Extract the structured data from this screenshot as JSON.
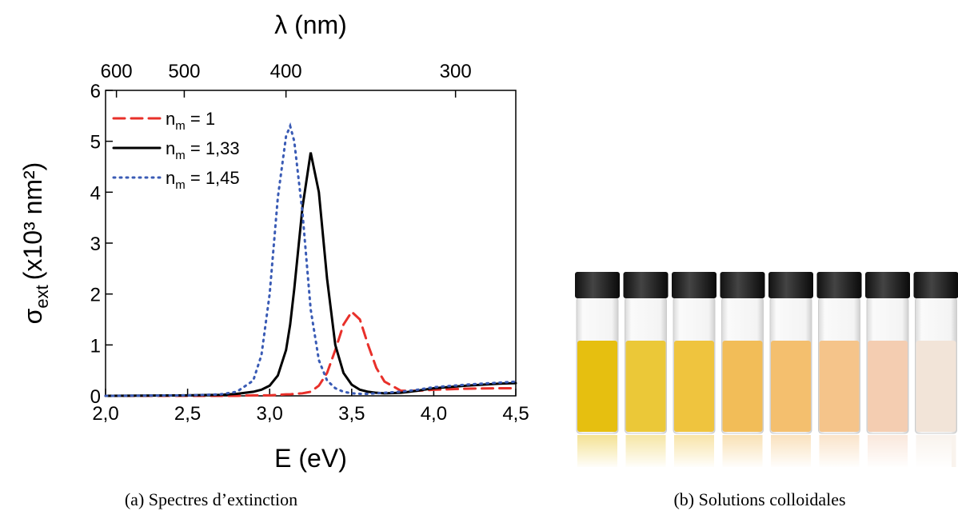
{
  "chart_data": {
    "type": "line",
    "xlabel": "E (eV)",
    "x2label": "λ (nm)",
    "ylabel": {
      "symbol": "σ",
      "subscript": "ext",
      "unit": "(x10³ nm²)"
    },
    "xlim": [
      2.0,
      4.5
    ],
    "xticks": [
      {
        "value": 2.0,
        "label": "2,0"
      },
      {
        "value": 2.5,
        "label": "2,5"
      },
      {
        "value": 3.0,
        "label": "3,0"
      },
      {
        "value": 3.5,
        "label": "3,5"
      },
      {
        "value": 4.0,
        "label": "4,0"
      },
      {
        "value": 4.5,
        "label": "4,5"
      }
    ],
    "x2ticks": [
      600,
      500,
      400,
      300
    ],
    "ylim": [
      0,
      6
    ],
    "yticks": [
      0,
      1,
      2,
      3,
      4,
      5,
      6
    ],
    "legend": "upper left",
    "x": [
      2.0,
      2.5,
      2.7,
      2.8,
      2.9,
      2.95,
      3.0,
      3.05,
      3.1,
      3.125,
      3.15,
      3.2,
      3.25,
      3.3,
      3.35,
      3.4,
      3.45,
      3.5,
      3.55,
      3.6,
      3.65,
      3.7,
      3.8,
      3.9,
      4.0,
      4.2,
      4.4,
      4.5
    ],
    "series": [
      {
        "name": "nm = 1",
        "color": "#e8302a",
        "style": "dashed",
        "values": [
          0,
          0,
          0,
          0,
          0.01,
          0.01,
          0.01,
          0.02,
          0.03,
          0.03,
          0.04,
          0.05,
          0.08,
          0.2,
          0.45,
          0.9,
          1.4,
          1.65,
          1.5,
          1.0,
          0.55,
          0.28,
          0.1,
          0.1,
          0.12,
          0.14,
          0.15,
          0.15
        ]
      },
      {
        "name": "nm = 1,33",
        "color": "#000000",
        "style": "solid",
        "values": [
          0,
          0.01,
          0.02,
          0.04,
          0.08,
          0.12,
          0.2,
          0.4,
          0.9,
          1.4,
          2.1,
          3.7,
          4.78,
          4.0,
          2.3,
          1.0,
          0.45,
          0.22,
          0.12,
          0.08,
          0.06,
          0.05,
          0.06,
          0.1,
          0.15,
          0.2,
          0.24,
          0.25
        ]
      },
      {
        "name": "nm = 1,45",
        "color": "#3a5bb5",
        "style": "dotted",
        "values": [
          0,
          0.01,
          0.03,
          0.08,
          0.3,
          0.8,
          2.0,
          3.9,
          5.1,
          5.3,
          5.0,
          3.6,
          1.7,
          0.7,
          0.3,
          0.15,
          0.08,
          0.05,
          0.04,
          0.04,
          0.05,
          0.06,
          0.08,
          0.12,
          0.17,
          0.22,
          0.26,
          0.28
        ]
      }
    ]
  },
  "captions": [
    "(a) Spectres d’extinction",
    "(b) Solutions colloidales"
  ]
}
